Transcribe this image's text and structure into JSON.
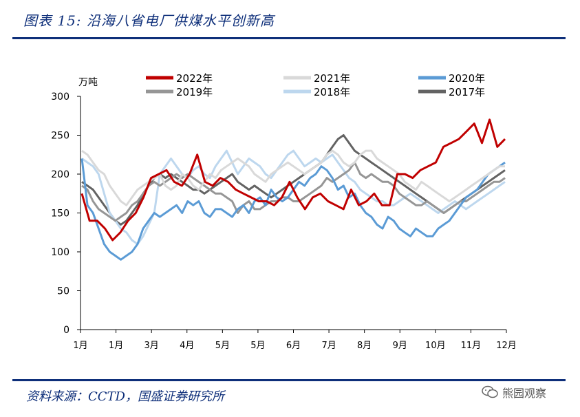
{
  "header": {
    "title": "图表 15:  沿海八省电厂供煤水平创新高"
  },
  "footer": {
    "source": "资料来源：CCTD，国盛证券研究所",
    "watermark": "熊园观察"
  },
  "chart_data": {
    "type": "line",
    "title": "沿海八省电厂供煤水平创新高",
    "ylabel": "万吨",
    "xlabel": "",
    "ylim": [
      0,
      300
    ],
    "yticks": [
      0,
      50,
      100,
      150,
      200,
      250,
      300
    ],
    "x_tick_labels": [
      "1月",
      "1月",
      "3月",
      "4月",
      "5月",
      "5月",
      "6月",
      "7月",
      "8月",
      "9月",
      "10月",
      "11月",
      "12月"
    ],
    "legend_position": "top",
    "series": [
      {
        "name": "2022年",
        "color": "#c00000",
        "width": 3,
        "values": [
          175,
          140,
          140,
          130,
          115,
          125,
          140,
          150,
          170,
          195,
          200,
          205,
          190,
          185,
          200,
          225,
          190,
          185,
          195,
          190,
          180,
          175,
          170,
          165,
          165,
          160,
          170,
          190,
          170,
          155,
          170,
          175,
          165,
          160,
          155,
          180,
          160,
          165,
          175,
          160,
          160,
          200,
          200,
          195,
          205,
          210,
          215,
          235,
          240,
          245,
          255,
          265,
          240,
          270,
          235,
          245
        ]
      },
      {
        "name": "2021年",
        "color": "#d9d9d9",
        "width": 3,
        "values": [
          230,
          225,
          215,
          205,
          200,
          185,
          175,
          165,
          160,
          170,
          180,
          185,
          190,
          195,
          200,
          185,
          180,
          185,
          200,
          195,
          185,
          180,
          190,
          200,
          195,
          205,
          210,
          215,
          220,
          215,
          210,
          200,
          195,
          190,
          200,
          205,
          210,
          215,
          210,
          205,
          200,
          205,
          210,
          215,
          225,
          230,
          225,
          215,
          210,
          215,
          225,
          230,
          230,
          220,
          215,
          210,
          205,
          200,
          190,
          185,
          180,
          190,
          185,
          180,
          175,
          170,
          165,
          170,
          175,
          180,
          185,
          190,
          195,
          200,
          205,
          210,
          210
        ]
      },
      {
        "name": "2020年",
        "color": "#5b9bd5",
        "width": 3,
        "values": [
          220,
          160,
          150,
          130,
          110,
          100,
          95,
          90,
          95,
          100,
          110,
          130,
          140,
          150,
          145,
          150,
          155,
          160,
          150,
          165,
          160,
          165,
          150,
          145,
          155,
          155,
          150,
          145,
          155,
          160,
          150,
          165,
          170,
          160,
          180,
          170,
          165,
          170,
          180,
          190,
          185,
          195,
          200,
          210,
          205,
          195,
          180,
          185,
          170,
          175,
          160,
          150,
          145,
          135,
          130,
          145,
          140,
          130,
          125,
          120,
          130,
          125,
          120,
          120,
          130,
          135,
          140,
          150,
          160,
          170,
          175,
          180,
          190,
          200,
          205,
          210,
          215
        ]
      },
      {
        "name": "2019年",
        "color": "#969696",
        "width": 3,
        "values": [
          185,
          180,
          165,
          155,
          150,
          145,
          140,
          145,
          150,
          160,
          165,
          175,
          185,
          190,
          185,
          190,
          195,
          200,
          195,
          200,
          195,
          190,
          185,
          180,
          175,
          175,
          170,
          165,
          150,
          160,
          165,
          155,
          155,
          160,
          165,
          165,
          170,
          170,
          165,
          165,
          170,
          175,
          180,
          185,
          195,
          190,
          195,
          200,
          205,
          215,
          200,
          195,
          200,
          195,
          190,
          190,
          185,
          175,
          170,
          165,
          160,
          160,
          165,
          160,
          155,
          150,
          155,
          160,
          165,
          165,
          170,
          175,
          180,
          185,
          190,
          190,
          195
        ]
      },
      {
        "name": "2018年",
        "color": "#bdd7ee",
        "width": 3,
        "values": [
          220,
          215,
          210,
          200,
          175,
          150,
          140,
          130,
          125,
          115,
          110,
          120,
          135,
          150,
          200,
          210,
          220,
          210,
          200,
          195,
          205,
          210,
          200,
          195,
          210,
          220,
          230,
          215,
          200,
          210,
          220,
          215,
          210,
          200,
          195,
          205,
          215,
          225,
          230,
          220,
          210,
          215,
          220,
          215,
          220,
          225,
          215,
          205,
          195,
          190,
          180,
          175,
          170,
          165,
          165,
          160,
          160,
          165,
          170,
          175,
          170,
          165,
          160,
          155,
          150,
          155,
          160,
          165,
          160,
          155,
          160,
          165,
          170,
          175,
          180,
          185,
          190
        ]
      },
      {
        "name": "2017年",
        "color": "#636363",
        "width": 3,
        "values": [
          190,
          185,
          180,
          170,
          160,
          150,
          140,
          135,
          140,
          150,
          160,
          175,
          185,
          195,
          200,
          195,
          200,
          195,
          190,
          185,
          180,
          180,
          175,
          180,
          185,
          190,
          195,
          200,
          190,
          185,
          180,
          185,
          180,
          175,
          170,
          175,
          180,
          185,
          190,
          195,
          200,
          205,
          210,
          215,
          225,
          235,
          245,
          250,
          240,
          230,
          225,
          220,
          215,
          210,
          205,
          200,
          195,
          190,
          185,
          180,
          175,
          170,
          165,
          160,
          155,
          150,
          155,
          160,
          165,
          170,
          175,
          180,
          185,
          190,
          195,
          200,
          205
        ]
      }
    ]
  }
}
